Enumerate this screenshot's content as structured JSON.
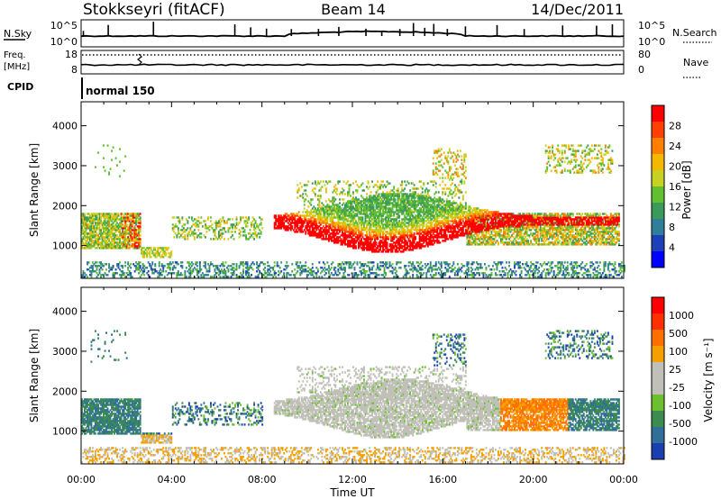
{
  "header": {
    "station": "Stokkseyri (fitACF)",
    "beam": "Beam 14",
    "date": "14/Dec/2011"
  },
  "panels": {
    "nsky_label": "N.Sky",
    "nsky_ticks": [
      "10^5",
      "10^0"
    ],
    "nsearch_label": "N.Search",
    "nsearch_ticks": [
      "10^5",
      "10^0"
    ],
    "freq_label_1": "Freq.",
    "freq_label_2": "[MHz]",
    "freq_ticks": [
      "18",
      "8"
    ],
    "nave_label": "Nave",
    "nave_ticks": [
      "80",
      "0"
    ],
    "cpid_label": "CPID",
    "cpid_value": "normal 150"
  },
  "chart_data": [
    {
      "type": "heatmap",
      "name": "power",
      "xlabel": "Time UT",
      "ylabel": "Slant Range [km]",
      "x_ticks": [
        "00:00",
        "04:00",
        "08:00",
        "12:00",
        "16:00",
        "20:00",
        "00:00"
      ],
      "x_range_hours": [
        0,
        24
      ],
      "y_ticks": [
        1000,
        2000,
        3000,
        4000
      ],
      "ylim": [
        180,
        4600
      ],
      "colorbar_label": "Power [dB]",
      "colorbar_ticks": [
        "28",
        "24",
        "20",
        "16",
        "12",
        "8",
        "4"
      ],
      "colorbar_colors": [
        "#0000ff",
        "#1d3fb8",
        "#2f7f9a",
        "#3a9a5a",
        "#62c030",
        "#c8d020",
        "#f5b800",
        "#ff8000",
        "#ff4000",
        "#ff0000"
      ]
    },
    {
      "type": "heatmap",
      "name": "velocity",
      "xlabel": "Time UT",
      "ylabel": "Slant Range [km]",
      "x_ticks": [
        "00:00",
        "04:00",
        "08:00",
        "12:00",
        "16:00",
        "20:00",
        "00:00"
      ],
      "x_range_hours": [
        0,
        24
      ],
      "y_ticks": [
        1000,
        2000,
        3000,
        4000
      ],
      "ylim": [
        180,
        4600
      ],
      "colorbar_label": "Velocity [m s⁻¹]",
      "colorbar_ticks": [
        "1000",
        "500",
        "100",
        "25",
        "-25",
        "-100",
        "-500",
        "-1000"
      ],
      "colorbar_colors": [
        "#1a3fb0",
        "#2f6f9a",
        "#3c8c50",
        "#6cc030",
        "#c0c0b8",
        "#c0c0b8",
        "#f5a000",
        "#ff7000",
        "#ff3000",
        "#ff0000"
      ]
    }
  ]
}
